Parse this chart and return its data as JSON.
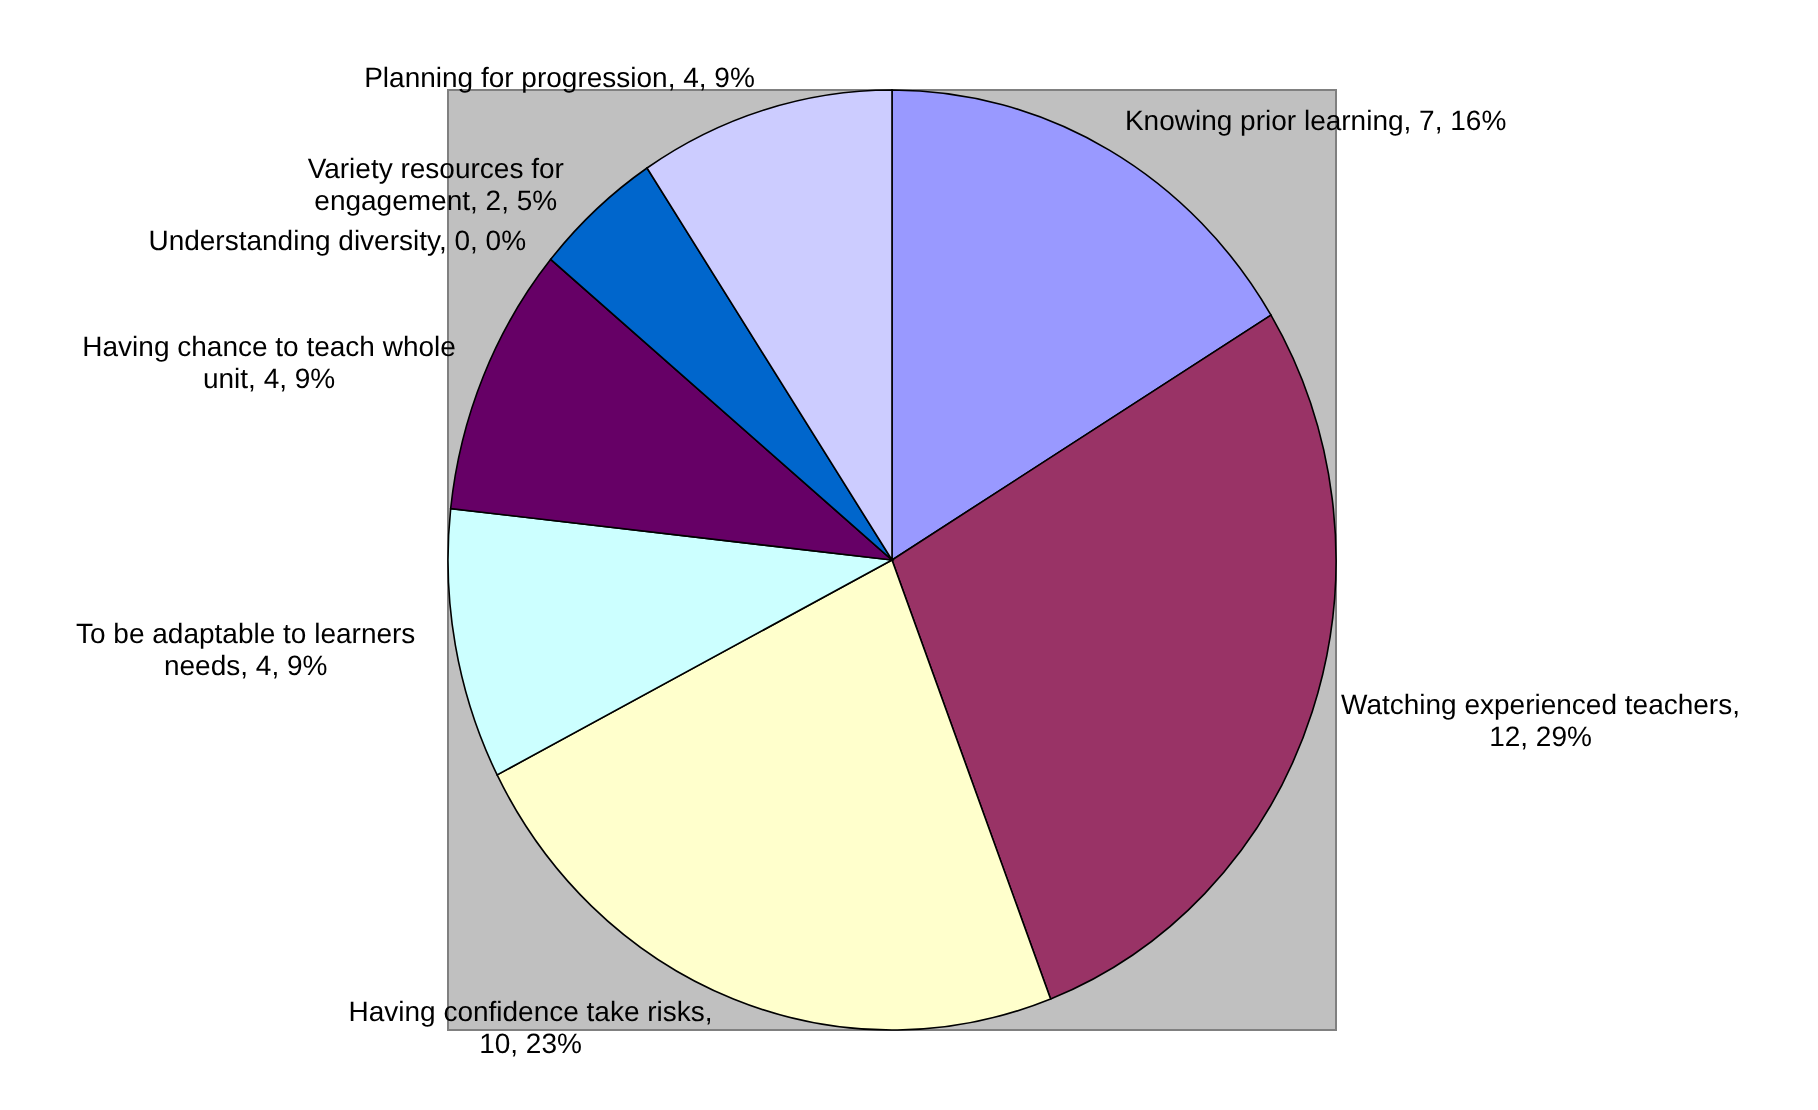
{
  "chart_data": {
    "type": "pie",
    "categories": [
      "Knowing prior learning",
      "Watching experienced teachers",
      "Having confidence take risks",
      "To be adaptable to learners needs",
      "Having chance to teach whole unit",
      "Understanding diversity",
      "Variety resources for engagement",
      "Planning for progression"
    ],
    "values": [
      7,
      12,
      10,
      4,
      4,
      0,
      2,
      4
    ],
    "value_labels": [
      ", 7, 16%",
      ", 12, 29%",
      ", 10, 23%",
      ", 4, 9%",
      ", 4, 9%",
      ", 0, 0%",
      ", 2, 5%",
      ", 4, 9%"
    ],
    "colors": [
      "#9999ff",
      "#993366",
      "#ffffcc",
      "#ccffff",
      "#660066",
      "#ff8080",
      "#0066cc",
      "#ccccff"
    ]
  }
}
